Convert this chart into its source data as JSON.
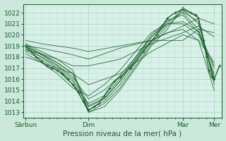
{
  "bg_color": "#cce8dc",
  "plot_bg_color": "#d8f0e8",
  "grid_major_color": "#a8d4c4",
  "grid_minor_color": "#b8e0d0",
  "line_color": "#1a5c2a",
  "ylabel_text": "Pression niveau de la mer( hPa )",
  "xtick_labels": [
    "Sârbun",
    "Dim",
    "Mar",
    "Mer"
  ],
  "xtick_positions": [
    0,
    48,
    120,
    144
  ],
  "ylim": [
    1012.5,
    1022.8
  ],
  "xlim": [
    -2,
    150
  ],
  "yticks": [
    1013,
    1014,
    1015,
    1016,
    1017,
    1018,
    1019,
    1020,
    1021,
    1022
  ],
  "tick_fontsize": 6.5,
  "label_fontsize": 7.5,
  "lw_thin": 0.6,
  "lw_main": 0.9,
  "ensemble_lines": [
    {
      "x": [
        0,
        12,
        24,
        36,
        48,
        60,
        72,
        84,
        96,
        108,
        120,
        132,
        144
      ],
      "y": [
        1019.0,
        1018.2,
        1017.5,
        1016.5,
        1013.2,
        1014.0,
        1015.5,
        1017.5,
        1019.5,
        1021.0,
        1022.3,
        1021.0,
        1016.0
      ]
    },
    {
      "x": [
        0,
        12,
        24,
        36,
        48,
        60,
        72,
        84,
        96,
        108,
        120,
        132,
        144
      ],
      "y": [
        1018.8,
        1018.0,
        1017.2,
        1016.0,
        1013.5,
        1014.2,
        1015.8,
        1017.8,
        1019.8,
        1021.2,
        1022.0,
        1020.5,
        1016.2
      ]
    },
    {
      "x": [
        0,
        12,
        24,
        36,
        48,
        60,
        72,
        84,
        96,
        108,
        120,
        132,
        144
      ],
      "y": [
        1018.5,
        1017.8,
        1016.8,
        1015.5,
        1013.8,
        1014.5,
        1016.0,
        1018.0,
        1020.0,
        1021.3,
        1021.8,
        1020.2,
        1016.5
      ]
    },
    {
      "x": [
        0,
        12,
        24,
        36,
        48,
        60,
        72,
        84,
        96,
        108,
        120,
        132,
        144
      ],
      "y": [
        1019.2,
        1018.5,
        1017.8,
        1016.8,
        1013.0,
        1013.8,
        1015.2,
        1017.2,
        1019.2,
        1020.8,
        1022.1,
        1021.2,
        1015.8
      ]
    },
    {
      "x": [
        0,
        12,
        24,
        36,
        48,
        60,
        72,
        84,
        96,
        108,
        120,
        132,
        144
      ],
      "y": [
        1018.3,
        1017.5,
        1016.5,
        1015.2,
        1014.5,
        1015.5,
        1016.8,
        1018.5,
        1020.2,
        1021.0,
        1021.0,
        1020.0,
        1017.0
      ]
    },
    {
      "x": [
        0,
        12,
        24,
        36,
        48,
        60,
        72,
        84,
        96,
        108,
        120,
        132,
        144
      ],
      "y": [
        1018.7,
        1018.0,
        1017.0,
        1015.8,
        1013.0,
        1013.5,
        1015.0,
        1017.0,
        1019.0,
        1020.5,
        1022.5,
        1021.5,
        1015.5
      ]
    },
    {
      "x": [
        0,
        12,
        24,
        36,
        48,
        60,
        72,
        84,
        96,
        108,
        120,
        132,
        144
      ],
      "y": [
        1018.9,
        1018.2,
        1017.3,
        1016.2,
        1014.2,
        1015.0,
        1016.3,
        1018.0,
        1019.8,
        1021.0,
        1021.2,
        1020.3,
        1017.2
      ]
    },
    {
      "x": [
        0,
        12,
        24,
        36,
        48,
        60,
        72,
        84,
        96,
        108,
        120,
        132,
        144
      ],
      "y": [
        1019.1,
        1018.3,
        1017.5,
        1016.5,
        1013.6,
        1014.3,
        1015.8,
        1017.8,
        1019.5,
        1020.2,
        1020.5,
        1019.5,
        1015.0
      ]
    },
    {
      "x": [
        0,
        12,
        24,
        36,
        48,
        72,
        96,
        120,
        132,
        144
      ],
      "y": [
        1019.5,
        1019.2,
        1019.0,
        1018.8,
        1018.5,
        1019.0,
        1019.5,
        1020.8,
        1021.5,
        1021.0
      ]
    },
    {
      "x": [
        0,
        12,
        24,
        36,
        48,
        72,
        96,
        120,
        132,
        144
      ],
      "y": [
        1018.0,
        1017.5,
        1017.0,
        1016.5,
        1015.5,
        1016.5,
        1018.5,
        1020.0,
        1019.5,
        1017.5
      ]
    },
    {
      "x": [
        0,
        12,
        24,
        36,
        48,
        72,
        96,
        120,
        132,
        144
      ],
      "y": [
        1019.0,
        1018.8,
        1018.5,
        1018.2,
        1017.8,
        1018.8,
        1019.5,
        1019.5,
        1020.5,
        1020.2
      ]
    },
    {
      "x": [
        0,
        12,
        24,
        36,
        48,
        72,
        96,
        120,
        132,
        144
      ],
      "y": [
        1018.6,
        1018.3,
        1017.8,
        1017.2,
        1017.2,
        1017.8,
        1019.2,
        1020.2,
        1020.8,
        1019.8
      ]
    }
  ],
  "main_x": [
    0,
    4,
    8,
    12,
    16,
    20,
    24,
    28,
    32,
    36,
    40,
    44,
    48,
    52,
    56,
    60,
    64,
    68,
    72,
    80,
    90,
    100,
    108,
    114,
    120,
    126,
    130,
    132,
    136,
    138,
    140,
    142,
    144,
    148
  ],
  "main_y": [
    1019.0,
    1018.5,
    1018.0,
    1017.6,
    1017.2,
    1017.0,
    1016.8,
    1016.5,
    1016.0,
    1015.5,
    1014.8,
    1014.0,
    1013.2,
    1013.5,
    1013.8,
    1014.5,
    1015.2,
    1015.8,
    1016.2,
    1017.0,
    1018.5,
    1020.0,
    1021.5,
    1022.0,
    1022.3,
    1022.0,
    1021.8,
    1021.5,
    1019.5,
    1018.0,
    1016.8,
    1016.2,
    1016.0,
    1017.2
  ]
}
